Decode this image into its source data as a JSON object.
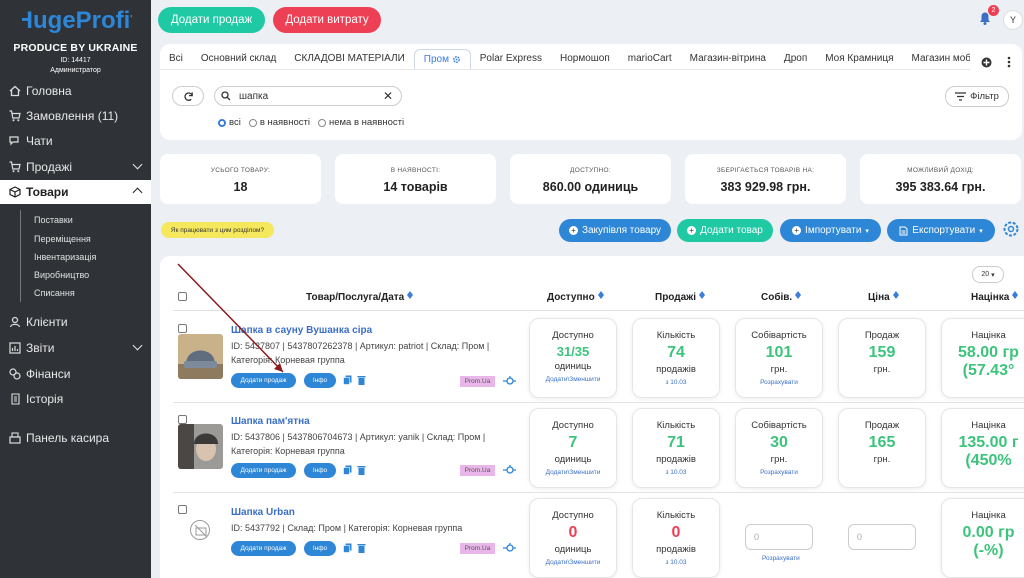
{
  "brand": {
    "name": "HugeProfit",
    "tagline": "PRODUCE BY UKRAINE",
    "id_line": "ID: 14417",
    "role": "Администратор"
  },
  "sidebar": {
    "items": [
      {
        "label": "Головна",
        "icon": "home-icon"
      },
      {
        "label": "Замовлення (11)",
        "icon": "cart-icon"
      },
      {
        "label": "Чати",
        "icon": "chat-icon"
      },
      {
        "label": "Продажі",
        "icon": "cart-icon"
      },
      {
        "label": "Товари",
        "icon": "box-icon"
      },
      {
        "label": "Клієнти",
        "icon": "user-icon"
      },
      {
        "label": "Звіти",
        "icon": "chart-icon"
      },
      {
        "label": "Фінанси",
        "icon": "finance-icon"
      },
      {
        "label": "Історія",
        "icon": "history-icon"
      },
      {
        "label": "Панель касира",
        "icon": "cashier-icon"
      }
    ],
    "sub_items": [
      "Поставки",
      "Переміщення",
      "Інвентаризація",
      "Виробництво",
      "Списання"
    ]
  },
  "header": {
    "add_sale": "Додати продаж",
    "add_expense": "Додати витрату",
    "notifications": "2",
    "avatar": "Y"
  },
  "tabs": [
    "Всі",
    "Основний склад",
    "СКЛАДОВІ МАТЕРІАЛИ",
    "Пром",
    "Polar Express",
    "Нормошоп",
    "marioCart",
    "Магазин-вітрина",
    "Дроп",
    "Моя Крамниця",
    "Магазин мобільної те"
  ],
  "search": {
    "value": "шапка",
    "filter_label": "Фільтр",
    "radio_all": "всі",
    "radio_in_stock": "в наявності",
    "radio_out": "нема в наявності"
  },
  "stats": [
    {
      "label": "УСЬОГО ТОВАРУ:",
      "value": "18"
    },
    {
      "label": "В НАЯВНОСТІ:",
      "value": "14 товарів"
    },
    {
      "label": "ДОСТУПНО:",
      "value": "860.00 одиниць"
    },
    {
      "label": "ЗБЕРІГАЄТЬСЯ ТОВАРІВ НА:",
      "value": "383 929.98 грн."
    },
    {
      "label": "МОЖЛИВИЙ ДОХІД:",
      "value": "395 383.64 грн."
    }
  ],
  "actions": {
    "howto": "Як працювати з цим розділом?",
    "purchase": "Закупівля товару",
    "add_product": "Додати товар",
    "import": "Імпортувати",
    "export": "Експортувати"
  },
  "table": {
    "per_page": "20",
    "headers": [
      "Товар/Послуга/Дата",
      "Доступно",
      "Продажі",
      "Собів.",
      "Ціна",
      "Націнка"
    ],
    "rows": [
      {
        "name": "Шапка в сауну Вушанка сіра",
        "info1": "ID: 5437807 | 5437807262378 | Артикул: patriot | Склад: Пром |",
        "info2": "Категорія: Корневая группа",
        "avail_t": "Доступно",
        "avail": "31/35",
        "avail_u": "одиниць",
        "avail_link": "Додати\\Зменшити",
        "sales_t": "Кількість",
        "sales": "74",
        "sales_u": "продажів",
        "sales_date": "з 10.03",
        "cost_t": "Собівартість",
        "cost": "101",
        "cost_u": "грн.",
        "cost_link": "Розрахувати",
        "price_t": "Продаж",
        "price": "159",
        "price_u": "грн.",
        "margin_t": "Націнка",
        "margin": "58.00 гр",
        "margin_pct": "(57.43°"
      },
      {
        "name": "Шапка пам'ятна",
        "info1": "ID: 5437806 | 5437806704673 | Артикул: yanik | Склад: Пром |",
        "info2": "Категорія: Корневая группа",
        "avail_t": "Доступно",
        "avail": "7",
        "avail_u": "одиниць",
        "avail_link": "Додати\\Зменшити",
        "sales_t": "Кількість",
        "sales": "71",
        "sales_u": "продажів",
        "sales_date": "з 10.03",
        "cost_t": "Собівартість",
        "cost": "30",
        "cost_u": "грн.",
        "cost_link": "Розрахувати",
        "price_t": "Продаж",
        "price": "165",
        "price_u": "грн.",
        "margin_t": "Націнка",
        "margin": "135.00 г",
        "margin_pct": "(450%"
      },
      {
        "name": "Шапка Urban",
        "info1": "ID: 5437792 | Склад: Пром | Категорія: Корневая группа",
        "avail_t": "Доступно",
        "avail": "0",
        "avail_u": "одиниць",
        "avail_link": "Додати\\Зменшити",
        "sales_t": "Кількість",
        "sales": "0",
        "sales_u": "продажів",
        "sales_date": "з 10.03",
        "cost_input": "0",
        "cost_link": "Розрахувати",
        "price_input": "0",
        "margin_t": "Націнка",
        "margin": "0.00 гр",
        "margin_pct": "(-%)"
      }
    ],
    "add_sale_btn": "Додати продаж",
    "info_btn": "Інфо",
    "marketplace": "Prom.Ua"
  },
  "colors": {
    "green": "#1ec9a3",
    "red": "#ee4054",
    "blue": "#2e86d6",
    "sidebar": "#2f3338"
  }
}
